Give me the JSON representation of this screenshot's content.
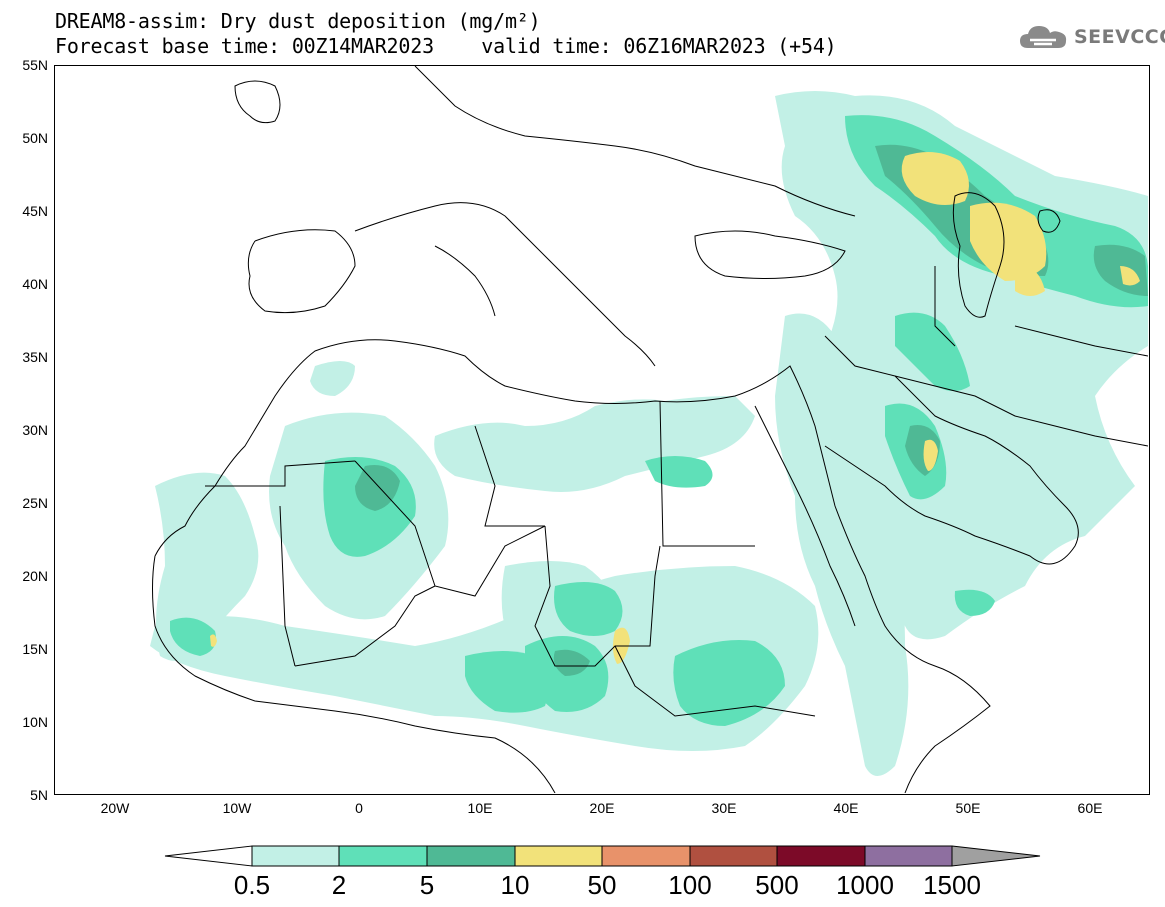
{
  "header": {
    "title_line1": "DREAM8-assim: Dry dust deposition (mg/m²)",
    "title_line2": "Forecast base time: 00Z14MAR2023    valid time: 06Z16MAR2023 (+54)"
  },
  "logo": {
    "icon": "cloud-icon",
    "text": "SEEVCCC",
    "color": "#7a7a7a"
  },
  "map": {
    "lat_labels": [
      "55N",
      "50N",
      "45N",
      "40N",
      "35N",
      "30N",
      "25N",
      "20N",
      "15N",
      "10N",
      "5N"
    ],
    "lon_labels": [
      "20W",
      "10W",
      "0",
      "10E",
      "20E",
      "30E",
      "40E",
      "50E",
      "60E"
    ]
  },
  "colorbar": {
    "labels": [
      "0.5",
      "2",
      "5",
      "10",
      "50",
      "100",
      "500",
      "1000",
      "1500"
    ],
    "colors": [
      "#c2f0e6",
      "#5fe0b8",
      "#4fb995",
      "#f2e27a",
      "#e8926a",
      "#b05040",
      "#7c0a28",
      "#8e6fa0"
    ],
    "under_color": "#ffffff",
    "over_color": "#a0a0a0"
  }
}
